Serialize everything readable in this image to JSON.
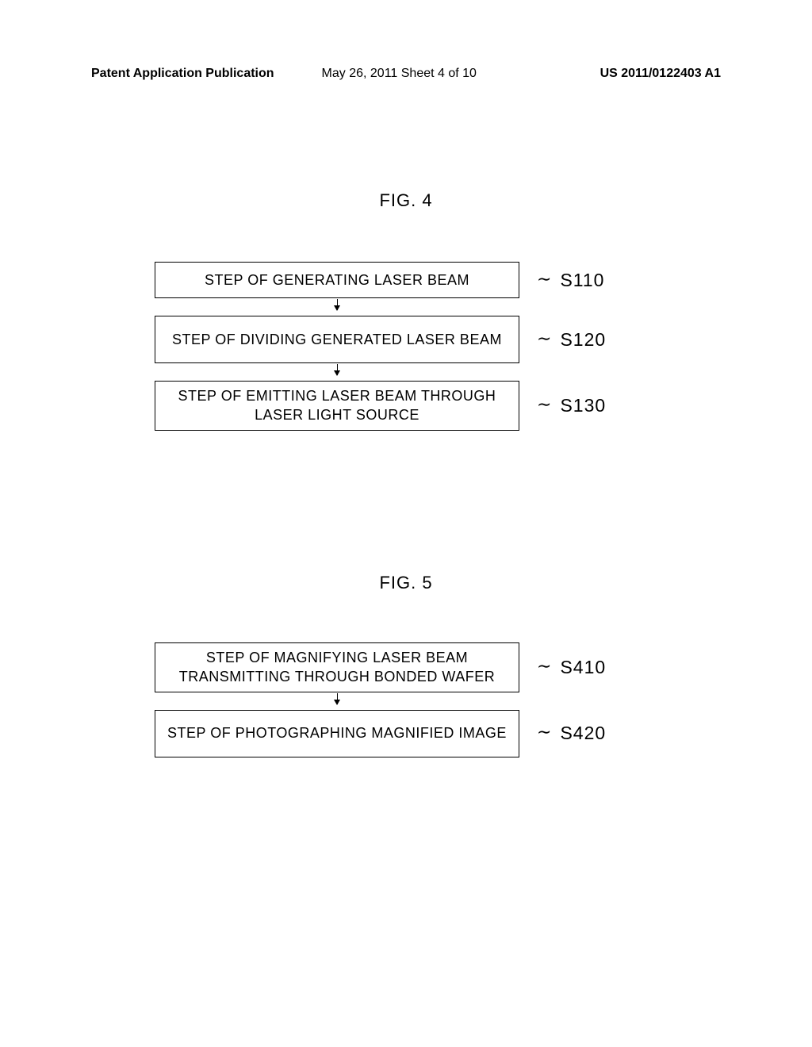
{
  "header": {
    "left": "Patent Application Publication",
    "middle": "May 26, 2011  Sheet 4 of 10",
    "right": "US 2011/0122403 A1"
  },
  "fig4": {
    "label": "FIG. 4",
    "steps": [
      {
        "text": "STEP OF GENERATING LASER BEAM",
        "ref": "S110",
        "lines": 1
      },
      {
        "text": "STEP OF DIVIDING GENERATED LASER BEAM",
        "ref": "S120",
        "lines": 2
      },
      {
        "text": "STEP OF EMITTING LASER BEAM THROUGH LASER LIGHT SOURCE",
        "ref": "S130",
        "lines": 2
      }
    ]
  },
  "fig5": {
    "label": "FIG.  5",
    "steps": [
      {
        "text": "STEP OF MAGNIFYING LASER BEAM TRANSMITTING THROUGH BONDED WAFER",
        "ref": "S410",
        "lines": 2
      },
      {
        "text": "STEP OF PHOTOGRAPHING MAGNIFIED IMAGE",
        "ref": "S420",
        "lines": 2
      }
    ]
  }
}
